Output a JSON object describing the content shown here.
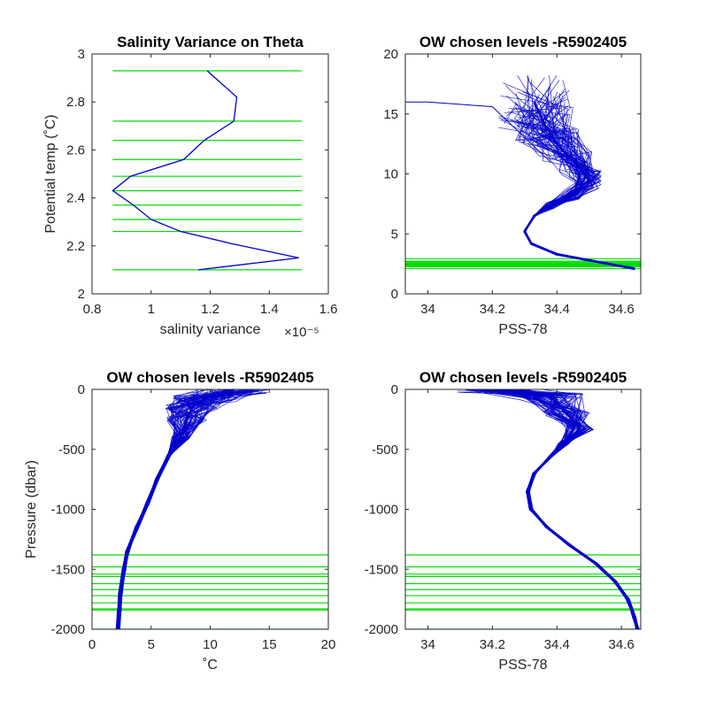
{
  "chart_data": [
    {
      "type": "line",
      "title": "Salinity Variance on Theta",
      "xlabel": "salinity variance",
      "x_exponent": "×10⁻⁵",
      "ylabel": "Potential temp (˚C)",
      "xlim": [
        0.8,
        1.6
      ],
      "ylim": [
        2,
        3
      ],
      "xticks": [
        "0.8",
        "1",
        "1.2",
        "1.4",
        "1.6"
      ],
      "yticks": [
        "2",
        "2.2",
        "2.4",
        "2.6",
        "2.8",
        "3"
      ],
      "series": [
        {
          "color": "#0000cc",
          "points": [
            [
              1.16,
              2.1
            ],
            [
              1.5,
              2.15
            ],
            [
              1.27,
              2.21
            ],
            [
              1.1,
              2.26
            ],
            [
              1.0,
              2.31
            ],
            [
              0.94,
              2.37
            ],
            [
              0.87,
              2.43
            ],
            [
              0.93,
              2.49
            ],
            [
              1.11,
              2.56
            ],
            [
              1.18,
              2.64
            ],
            [
              1.28,
              2.72
            ],
            [
              1.29,
              2.82
            ],
            [
              1.19,
              2.93
            ]
          ]
        }
      ],
      "chosen_levels": {
        "color": "#00dd00",
        "x_range": [
          0.87,
          1.51
        ],
        "values": [
          2.1,
          2.26,
          2.31,
          2.37,
          2.43,
          2.49,
          2.56,
          2.64,
          2.72,
          2.93
        ]
      }
    },
    {
      "type": "line",
      "title": "OW chosen levels -R5902405",
      "xlabel": "PSS-78",
      "ylabel": "",
      "xlim": [
        33.93,
        34.66
      ],
      "ylim": [
        0,
        20
      ],
      "xticks": [
        "34",
        "34.2",
        "34.4",
        "34.6"
      ],
      "yticks": [
        "0",
        "5",
        "10",
        "15",
        "20"
      ],
      "series": [
        {
          "color": "#0000cc",
          "name": "",
          "representative_profile": [
            [
              34.64,
              2.1
            ],
            [
              34.5,
              2.8
            ],
            [
              34.4,
              3.3
            ],
            [
              34.32,
              4.2
            ],
            [
              34.3,
              5.2
            ],
            [
              34.33,
              6.5
            ],
            [
              34.38,
              7.4
            ],
            [
              34.45,
              8.3
            ],
            [
              34.5,
              9.5
            ],
            [
              34.46,
              10.8
            ],
            [
              34.4,
              12.5
            ],
            [
              34.36,
              14.2
            ],
            [
              34.33,
              16.0
            ]
          ]
        },
        {
          "color": "#0000cc",
          "name": "",
          "surface_outlier": [
            [
              34.38,
              11.0
            ],
            [
              34.2,
              15.6
            ],
            [
              34.0,
              16.0
            ],
            [
              33.93,
              16.0
            ]
          ]
        }
      ],
      "chosen_levels": {
        "color": "#00dd00",
        "values": [
          2.1,
          2.26,
          2.31,
          2.37,
          2.43,
          2.49,
          2.56,
          2.64,
          2.72,
          2.93
        ]
      }
    },
    {
      "type": "line",
      "title": "OW chosen levels -R5902405",
      "xlabel": "˚C",
      "ylabel": "Pressure (dbar)",
      "xlim": [
        0,
        20
      ],
      "ylim": [
        -2000,
        0
      ],
      "xticks": [
        "0",
        "5",
        "10",
        "15",
        "20"
      ],
      "yticks": [
        "0",
        "-500",
        "-1000",
        "-1500",
        "-2000"
      ],
      "series": [
        {
          "color": "#0000cc",
          "representative_profile": [
            [
              12.0,
              0
            ],
            [
              9.5,
              -80
            ],
            [
              8.5,
              -150
            ],
            [
              8.0,
              -250
            ],
            [
              7.5,
              -400
            ],
            [
              6.5,
              -550
            ],
            [
              5.5,
              -750
            ],
            [
              4.7,
              -950
            ],
            [
              3.8,
              -1150
            ],
            [
              3.0,
              -1350
            ],
            [
              2.7,
              -1500
            ],
            [
              2.4,
              -1700
            ],
            [
              2.3,
              -1850
            ],
            [
              2.2,
              -2000
            ]
          ]
        }
      ],
      "chosen_levels": {
        "color": "#00dd00",
        "values": [
          -1380,
          -1480,
          -1540,
          -1560,
          -1620,
          -1670,
          -1720,
          -1780,
          -1830,
          -1840,
          -2000
        ]
      }
    },
    {
      "type": "line",
      "title": "OW chosen levels -R5902405",
      "xlabel": "PSS-78",
      "ylabel": "",
      "xlim": [
        33.93,
        34.66
      ],
      "ylim": [
        -2000,
        0
      ],
      "xticks": [
        "34",
        "34.2",
        "34.4",
        "34.6"
      ],
      "yticks": [
        "0",
        "-500",
        "-1000",
        "-1500",
        "-2000"
      ],
      "series": [
        {
          "color": "#0000cc",
          "representative_profile": [
            [
              34.2,
              0
            ],
            [
              34.38,
              -60
            ],
            [
              34.43,
              -200
            ],
            [
              34.47,
              -330
            ],
            [
              34.42,
              -450
            ],
            [
              34.38,
              -560
            ],
            [
              34.33,
              -700
            ],
            [
              34.31,
              -850
            ],
            [
              34.32,
              -1000
            ],
            [
              34.37,
              -1150
            ],
            [
              34.44,
              -1300
            ],
            [
              34.52,
              -1450
            ],
            [
              34.58,
              -1600
            ],
            [
              34.62,
              -1750
            ],
            [
              34.64,
              -1900
            ],
            [
              34.65,
              -2000
            ]
          ]
        }
      ],
      "chosen_levels": {
        "color": "#00dd00",
        "values": [
          -1380,
          -1480,
          -1540,
          -1560,
          -1620,
          -1670,
          -1720,
          -1780,
          -1830,
          -1840,
          -2000
        ]
      }
    }
  ]
}
